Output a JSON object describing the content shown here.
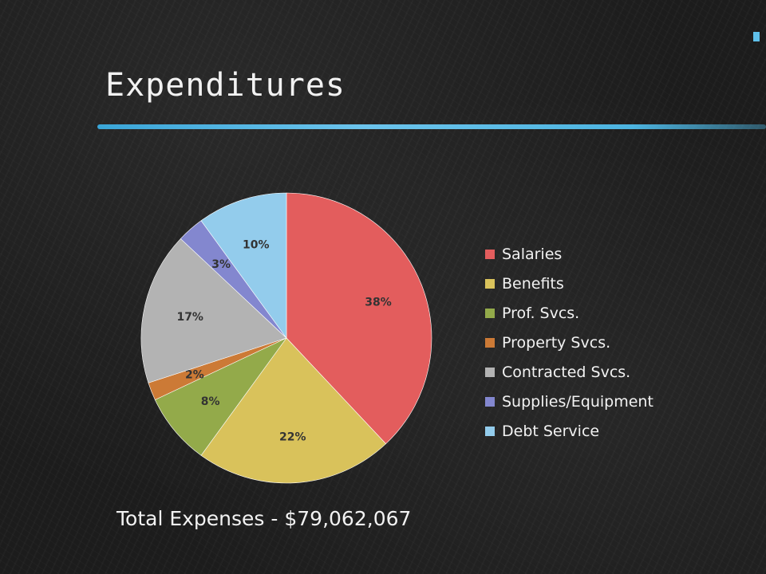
{
  "slide": {
    "title": "Expenditures",
    "total_text": "Total Expenses - $79,062,067"
  },
  "chart_data": {
    "type": "pie",
    "categories": [
      "Salaries",
      "Benefits",
      "Prof. Svcs.",
      "Property Svcs.",
      "Contracted Svcs.",
      "Supplies/Equipment",
      "Debt Service"
    ],
    "values": [
      38,
      22,
      8,
      2,
      17,
      3,
      10
    ],
    "labels": [
      "38%",
      "22%",
      "8%",
      "2%",
      "17%",
      "3%",
      "10%"
    ],
    "colors": [
      "#e35d5d",
      "#d9c25b",
      "#93aa4a",
      "#cc7a36",
      "#b3b3b3",
      "#8387cf",
      "#93ccec"
    ],
    "legend_position": "right",
    "label_color": "#333333"
  },
  "theme": {
    "accent": "#4cb4e0",
    "text": "#f2f2f2"
  }
}
